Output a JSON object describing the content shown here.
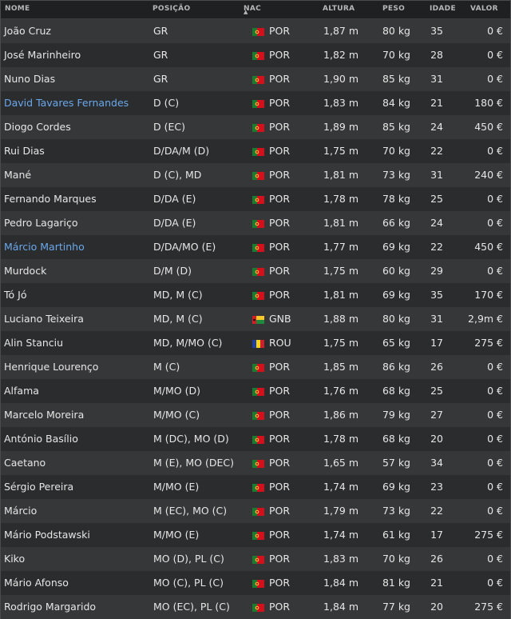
{
  "columns": {
    "name": "NOME",
    "position": "POSIÇÃO",
    "nationality": "NAC",
    "height": "ALTURA",
    "weight": "PESO",
    "age": "IDADE",
    "value": "VALOR"
  },
  "sort": {
    "column": "nationality",
    "direction": "asc"
  },
  "colors": {
    "highlighted_name": "#6aa8ec",
    "row_odd": "#363739",
    "row_even": "#2b2c2e"
  },
  "players": [
    {
      "name": "João Cruz",
      "position": "GR",
      "flag": "portugal-flag-icon",
      "nationality": "POR",
      "height": "1,87 m",
      "weight": "80 kg",
      "age": "35",
      "value": "0 €",
      "highlighted": false
    },
    {
      "name": "José Marinheiro",
      "position": "GR",
      "flag": "portugal-flag-icon",
      "nationality": "POR",
      "height": "1,82 m",
      "weight": "70 kg",
      "age": "28",
      "value": "0 €",
      "highlighted": false
    },
    {
      "name": "Nuno Dias",
      "position": "GR",
      "flag": "portugal-flag-icon",
      "nationality": "POR",
      "height": "1,90 m",
      "weight": "85 kg",
      "age": "31",
      "value": "0 €",
      "highlighted": false
    },
    {
      "name": "David Tavares Fernandes",
      "position": "D (C)",
      "flag": "portugal-flag-icon",
      "nationality": "POR",
      "height": "1,83 m",
      "weight": "84 kg",
      "age": "21",
      "value": "180 €",
      "highlighted": true
    },
    {
      "name": "Diogo Cordes",
      "position": "D (EC)",
      "flag": "portugal-flag-icon",
      "nationality": "POR",
      "height": "1,89 m",
      "weight": "85 kg",
      "age": "24",
      "value": "450 €",
      "highlighted": false
    },
    {
      "name": "Rui Dias",
      "position": "D/DA/M (D)",
      "flag": "portugal-flag-icon",
      "nationality": "POR",
      "height": "1,75 m",
      "weight": "70 kg",
      "age": "22",
      "value": "0 €",
      "highlighted": false
    },
    {
      "name": "Mané",
      "position": "D (C), MD",
      "flag": "portugal-flag-icon",
      "nationality": "POR",
      "height": "1,81 m",
      "weight": "73 kg",
      "age": "31",
      "value": "240 €",
      "highlighted": false
    },
    {
      "name": "Fernando Marques",
      "position": "D/DA (E)",
      "flag": "portugal-flag-icon",
      "nationality": "POR",
      "height": "1,78 m",
      "weight": "78 kg",
      "age": "25",
      "value": "0 €",
      "highlighted": false
    },
    {
      "name": "Pedro Lagariço",
      "position": "D/DA (E)",
      "flag": "portugal-flag-icon",
      "nationality": "POR",
      "height": "1,81 m",
      "weight": "66 kg",
      "age": "24",
      "value": "0 €",
      "highlighted": false
    },
    {
      "name": "Márcio Martinho",
      "position": "D/DA/MO (E)",
      "flag": "portugal-flag-icon",
      "nationality": "POR",
      "height": "1,77 m",
      "weight": "69 kg",
      "age": "22",
      "value": "450 €",
      "highlighted": true
    },
    {
      "name": "Murdock",
      "position": "D/M (D)",
      "flag": "portugal-flag-icon",
      "nationality": "POR",
      "height": "1,75 m",
      "weight": "60 kg",
      "age": "29",
      "value": "0 €",
      "highlighted": false
    },
    {
      "name": "Tó Jó",
      "position": "MD, M (C)",
      "flag": "portugal-flag-icon",
      "nationality": "POR",
      "height": "1,81 m",
      "weight": "69 kg",
      "age": "35",
      "value": "170 €",
      "highlighted": false
    },
    {
      "name": "Luciano Teixeira",
      "position": "MD, M (C)",
      "flag": "guinea-bissau-flag-icon",
      "nationality": "GNB",
      "height": "1,88 m",
      "weight": "80 kg",
      "age": "31",
      "value": "2,9m €",
      "highlighted": false
    },
    {
      "name": "Alin Stanciu",
      "position": "MD, M/MO (C)",
      "flag": "romania-flag-icon",
      "nationality": "ROU",
      "height": "1,75 m",
      "weight": "65 kg",
      "age": "17",
      "value": "275 €",
      "highlighted": false
    },
    {
      "name": "Henrique Lourenço",
      "position": "M (C)",
      "flag": "portugal-flag-icon",
      "nationality": "POR",
      "height": "1,85 m",
      "weight": "86 kg",
      "age": "26",
      "value": "0 €",
      "highlighted": false
    },
    {
      "name": "Alfama",
      "position": "M/MO (D)",
      "flag": "portugal-flag-icon",
      "nationality": "POR",
      "height": "1,76 m",
      "weight": "68 kg",
      "age": "25",
      "value": "0 €",
      "highlighted": false
    },
    {
      "name": "Marcelo Moreira",
      "position": "M/MO (C)",
      "flag": "portugal-flag-icon",
      "nationality": "POR",
      "height": "1,86 m",
      "weight": "79 kg",
      "age": "27",
      "value": "0 €",
      "highlighted": false
    },
    {
      "name": "António Basílio",
      "position": "M (DC), MO (D)",
      "flag": "portugal-flag-icon",
      "nationality": "POR",
      "height": "1,78 m",
      "weight": "68 kg",
      "age": "20",
      "value": "0 €",
      "highlighted": false
    },
    {
      "name": "Caetano",
      "position": "M (E), MO (DEC)",
      "flag": "portugal-flag-icon",
      "nationality": "POR",
      "height": "1,65 m",
      "weight": "57 kg",
      "age": "34",
      "value": "0 €",
      "highlighted": false
    },
    {
      "name": "Sérgio Pereira",
      "position": "M/MO (E)",
      "flag": "portugal-flag-icon",
      "nationality": "POR",
      "height": "1,74 m",
      "weight": "69 kg",
      "age": "23",
      "value": "0 €",
      "highlighted": false
    },
    {
      "name": "Márcio",
      "position": "M (EC), MO (C)",
      "flag": "portugal-flag-icon",
      "nationality": "POR",
      "height": "1,79 m",
      "weight": "73 kg",
      "age": "22",
      "value": "0 €",
      "highlighted": false
    },
    {
      "name": "Mário Podstawski",
      "position": "M/MO (E)",
      "flag": "portugal-flag-icon",
      "nationality": "POR",
      "height": "1,74 m",
      "weight": "61 kg",
      "age": "17",
      "value": "275 €",
      "highlighted": false
    },
    {
      "name": "Kiko",
      "position": "MO (D), PL (C)",
      "flag": "portugal-flag-icon",
      "nationality": "POR",
      "height": "1,83 m",
      "weight": "70 kg",
      "age": "26",
      "value": "0 €",
      "highlighted": false
    },
    {
      "name": "Mário Afonso",
      "position": "MO (C), PL (C)",
      "flag": "portugal-flag-icon",
      "nationality": "POR",
      "height": "1,84 m",
      "weight": "81 kg",
      "age": "21",
      "value": "0 €",
      "highlighted": false
    },
    {
      "name": "Rodrigo Margarido",
      "position": "MO (EC), PL (C)",
      "flag": "portugal-flag-icon",
      "nationality": "POR",
      "height": "1,84 m",
      "weight": "77 kg",
      "age": "20",
      "value": "275 €",
      "highlighted": false
    }
  ]
}
